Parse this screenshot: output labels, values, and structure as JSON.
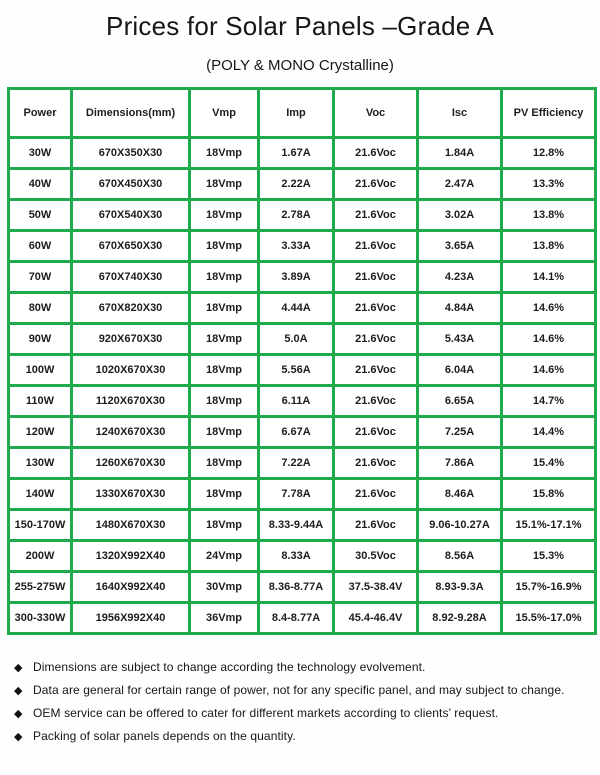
{
  "title": "Prices for Solar Panels –Grade A",
  "subtitle": "(POLY & MONO Crystalline)",
  "table": {
    "border_color": "#1fab4b",
    "headers": [
      "Power",
      "Dimensions(mm)",
      "Vmp",
      "Imp",
      "Voc",
      "Isc",
      "PV Efficiency"
    ],
    "rows": [
      [
        "30W",
        "670X350X30",
        "18Vmp",
        "1.67A",
        "21.6Voc",
        "1.84A",
        "12.8%"
      ],
      [
        "40W",
        "670X450X30",
        "18Vmp",
        "2.22A",
        "21.6Voc",
        "2.47A",
        "13.3%"
      ],
      [
        "50W",
        "670X540X30",
        "18Vmp",
        "2.78A",
        "21.6Voc",
        "3.02A",
        "13.8%"
      ],
      [
        "60W",
        "670X650X30",
        "18Vmp",
        "3.33A",
        "21.6Voc",
        "3.65A",
        "13.8%"
      ],
      [
        "70W",
        "670X740X30",
        "18Vmp",
        "3.89A",
        "21.6Voc",
        "4.23A",
        "14.1%"
      ],
      [
        "80W",
        "670X820X30",
        "18Vmp",
        "4.44A",
        "21.6Voc",
        "4.84A",
        "14.6%"
      ],
      [
        "90W",
        "920X670X30",
        "18Vmp",
        "5.0A",
        "21.6Voc",
        "5.43A",
        "14.6%"
      ],
      [
        "100W",
        "1020X670X30",
        "18Vmp",
        "5.56A",
        "21.6Voc",
        "6.04A",
        "14.6%"
      ],
      [
        "110W",
        "1120X670X30",
        "18Vmp",
        "6.11A",
        "21.6Voc",
        "6.65A",
        "14.7%"
      ],
      [
        "120W",
        "1240X670X30",
        "18Vmp",
        "6.67A",
        "21.6Voc",
        "7.25A",
        "14.4%"
      ],
      [
        "130W",
        "1260X670X30",
        "18Vmp",
        "7.22A",
        "21.6Voc",
        "7.86A",
        "15.4%"
      ],
      [
        "140W",
        "1330X670X30",
        "18Vmp",
        "7.78A",
        "21.6Voc",
        "8.46A",
        "15.8%"
      ],
      [
        "150-170W",
        "1480X670X30",
        "18Vmp",
        "8.33-9.44A",
        "21.6Voc",
        "9.06-10.27A",
        "15.1%-17.1%"
      ],
      [
        "200W",
        "1320X992X40",
        "24Vmp",
        "8.33A",
        "30.5Voc",
        "8.56A",
        "15.3%"
      ],
      [
        "255-275W",
        "1640X992X40",
        "30Vmp",
        "8.36-8.77A",
        "37.5-38.4V",
        "8.93-9.3A",
        "15.7%-16.9%"
      ],
      [
        "300-330W",
        "1956X992X40",
        "36Vmp",
        "8.4-8.77A",
        "45.4-46.4V",
        "8.92-9.28A",
        "15.5%-17.0%"
      ]
    ]
  },
  "notes": {
    "bullet_icon": "◆",
    "items": [
      "Dimensions are subject to change according the technology evolvement.",
      "Data are general for certain range of power, not for any specific panel, and may subject to change.",
      "OEM service can be offered to cater for different markets according to clients’ request.",
      "Packing of solar panels depends on the quantity."
    ]
  }
}
